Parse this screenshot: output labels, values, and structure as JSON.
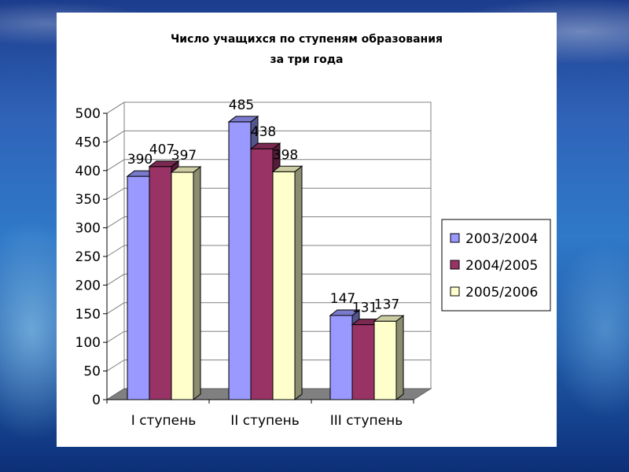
{
  "chart_data": {
    "type": "bar",
    "title_line1": "Число учащихся по ступеням образования",
    "title_line2": "за три года",
    "xlabel": "",
    "ylabel": "",
    "ylim": [
      0,
      500
    ],
    "yticks": [
      0,
      50,
      100,
      150,
      200,
      250,
      300,
      350,
      400,
      450,
      500
    ],
    "categories": [
      "I ступень",
      "II ступень",
      "III ступень"
    ],
    "series": [
      {
        "name": "2003/2004",
        "values": [
          390,
          485,
          147
        ],
        "color": "#9999ff"
      },
      {
        "name": "2004/2005",
        "values": [
          407,
          438,
          131
        ],
        "color": "#993366"
      },
      {
        "name": "2005/2006",
        "values": [
          397,
          398,
          137
        ],
        "color": "#ffffcc"
      }
    ],
    "grid": true,
    "legend_position": "right",
    "style": "3d-clustered-column"
  }
}
